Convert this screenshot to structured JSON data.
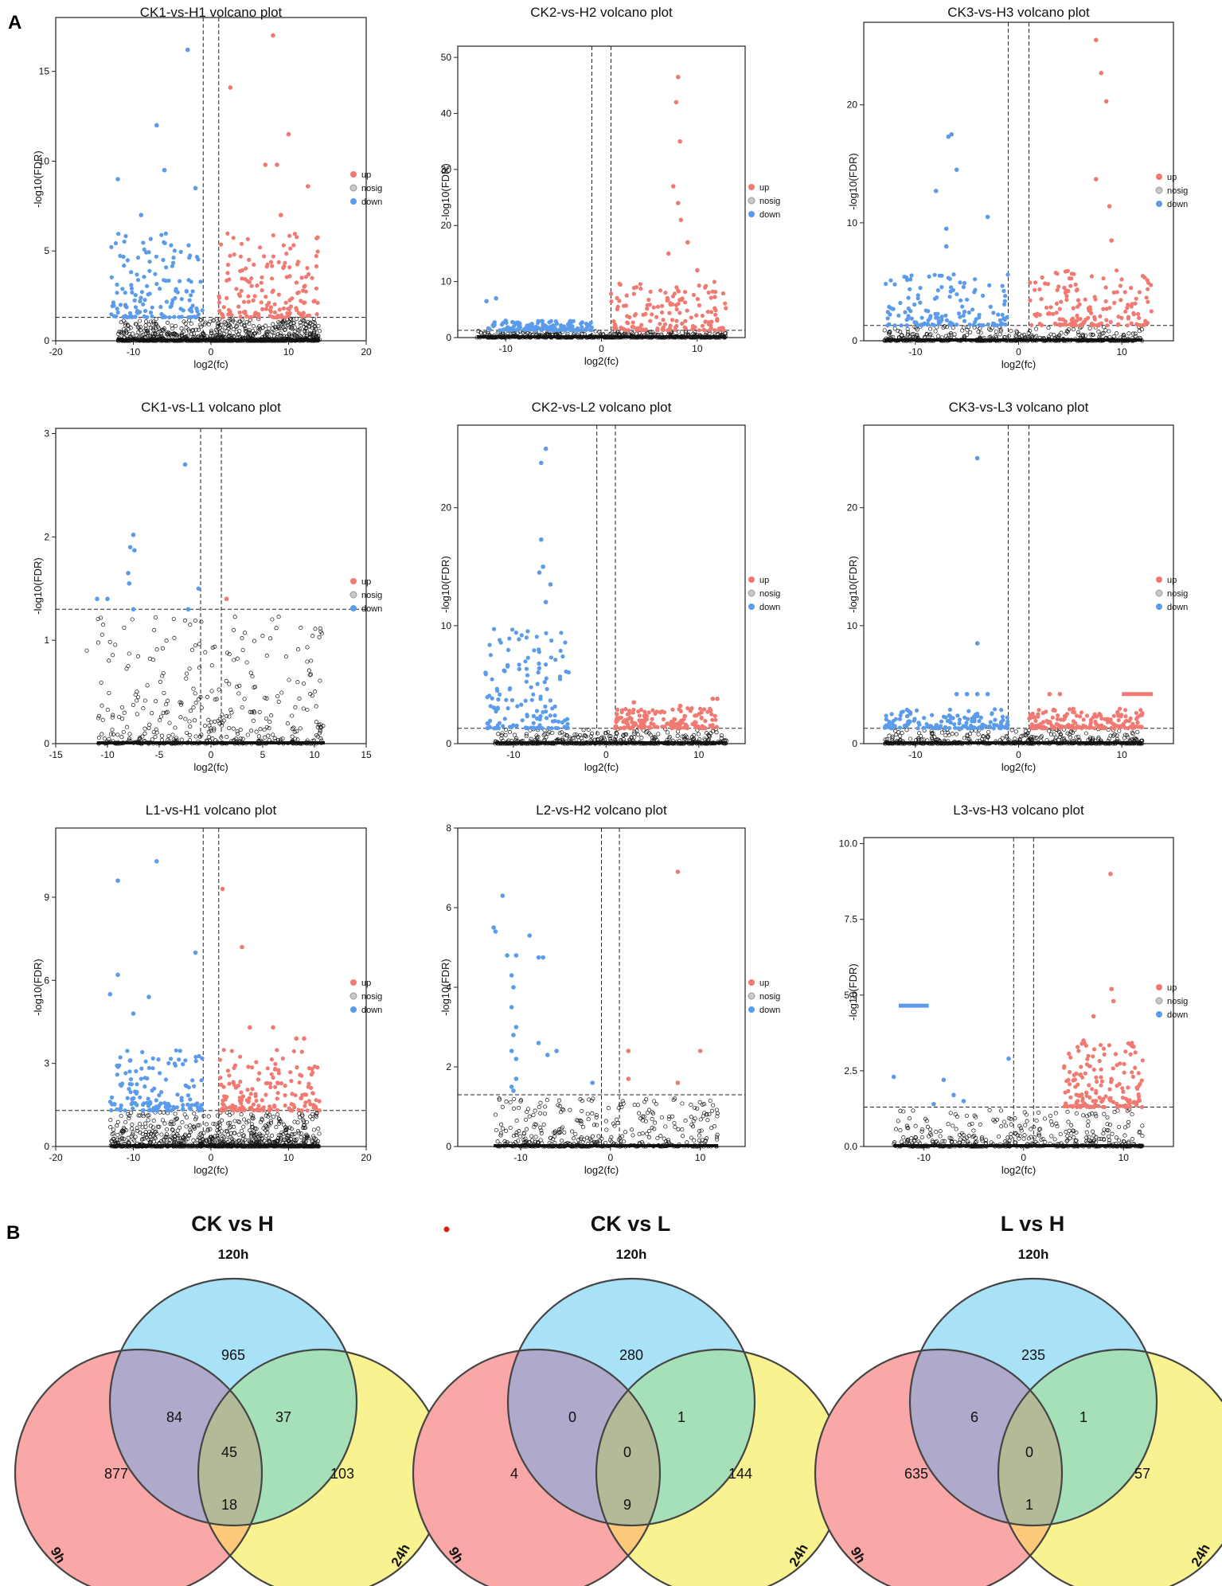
{
  "panel_labels": {
    "a": "A",
    "b": "B"
  },
  "legend": {
    "up": "up",
    "nosig": "nosig",
    "down": "down"
  },
  "colors": {
    "up": "#F07A72",
    "nosig": "#111111",
    "down": "#5B9BEA",
    "c120": "#A9E1F6",
    "c9": "#F9A7A7",
    "c24": "#F8F390",
    "c9x120": "#AFA9CB",
    "c120x24": "#A6E0B8",
    "c9x24": "#FCC97B",
    "c3": "#B2BA98"
  },
  "chart_data": [
    {
      "type": "scatter",
      "title": "CK1-vs-H1 volcano plot",
      "xlabel": "log2(fc)",
      "ylabel": "-log10(FDR)",
      "xlim": [
        -20,
        20
      ],
      "ylim": [
        0,
        18
      ],
      "xticks": [
        -20,
        -10,
        0,
        10,
        20
      ],
      "yticks": [
        0,
        5,
        10,
        15
      ],
      "vlines": [
        -1,
        1
      ],
      "hline": 1.3,
      "clouds": {
        "nosig": [
          [
            -12,
            2
          ],
          [
            2,
            14
          ]
        ],
        "down": [
          [
            -13,
            -1
          ]
        ],
        "up": [
          [
            1,
            14
          ]
        ]
      },
      "up_max": 6,
      "down_max": 6,
      "highlights": {
        "up": [
          [
            8,
            17
          ],
          [
            2.5,
            14.1
          ],
          [
            10,
            11.5
          ],
          [
            7,
            9.8
          ],
          [
            8.5,
            9.8
          ],
          [
            12.5,
            8.6
          ],
          [
            9,
            7
          ]
        ],
        "down": [
          [
            -3,
            16.2
          ],
          [
            -7,
            12
          ],
          [
            -12,
            9
          ],
          [
            -6,
            9.5
          ],
          [
            -2,
            8.5
          ],
          [
            -9,
            7
          ]
        ]
      }
    },
    {
      "type": "scatter",
      "title": "CK2-vs-H2 volcano plot",
      "xlabel": "log2(fc)",
      "ylabel": "-log10(FDR)",
      "xlim": [
        -15,
        15
      ],
      "ylim": [
        0,
        52
      ],
      "xticks": [
        -10,
        0,
        10
      ],
      "yticks": [
        0,
        10,
        20,
        30,
        40,
        50
      ],
      "vlines": [
        -1,
        1
      ],
      "hline": 1.3,
      "clouds": {
        "nosig": [
          [
            -13,
            13
          ]
        ],
        "down": [
          [
            -12,
            -1
          ]
        ],
        "up": [
          [
            1,
            13
          ]
        ]
      },
      "up_max": 10,
      "down_max": 3,
      "highlights": {
        "up": [
          [
            8,
            46.5
          ],
          [
            7.8,
            42
          ],
          [
            8.2,
            35
          ],
          [
            7.5,
            27
          ],
          [
            8,
            24
          ],
          [
            8.3,
            21
          ],
          [
            9,
            17
          ],
          [
            7,
            15
          ],
          [
            10,
            12
          ]
        ],
        "down": [
          [
            -11,
            7
          ],
          [
            -12,
            6.5
          ],
          [
            -10,
            3
          ]
        ]
      }
    },
    {
      "type": "scatter",
      "title": "CK3-vs-H3 volcano plot",
      "xlabel": "log2(fc)",
      "ylabel": "-log10(FDR)",
      "xlim": [
        -15,
        15
      ],
      "ylim": [
        0,
        27
      ],
      "xticks": [
        -10,
        0,
        10
      ],
      "yticks": [
        0,
        10,
        20
      ],
      "vlines": [
        -1,
        1
      ],
      "hline": 1.3,
      "clouds": {
        "nosig": [
          [
            -13,
            12
          ]
        ],
        "down": [
          [
            -13,
            -1
          ]
        ],
        "up": [
          [
            1,
            13
          ]
        ]
      },
      "up_max": 6,
      "down_max": 6,
      "highlights": {
        "up": [
          [
            7.5,
            25.5
          ],
          [
            8,
            22.7
          ],
          [
            8.5,
            20.3
          ],
          [
            7.5,
            13.7
          ],
          [
            8.8,
            11.4
          ],
          [
            9,
            8.5
          ]
        ],
        "down": [
          [
            -6.5,
            17.5
          ],
          [
            -6.8,
            17.3
          ],
          [
            -6,
            14.5
          ],
          [
            -8,
            12.7
          ],
          [
            -3,
            10.5
          ],
          [
            -7,
            9.5
          ],
          [
            -7,
            8
          ]
        ]
      }
    },
    {
      "type": "scatter",
      "title": "CK1-vs-L1 volcano plot",
      "xlabel": "log2(fc)",
      "ylabel": "-log10(FDR)",
      "xlim": [
        -15,
        15
      ],
      "ylim": [
        0,
        3.05
      ],
      "xticks": [
        -15,
        -10,
        -5,
        0,
        5,
        10,
        15
      ],
      "yticks": [
        0,
        1,
        2,
        3
      ],
      "vlines": [
        -1,
        1
      ],
      "hline": 1.3,
      "clouds": {
        "nosig": [
          [
            -11,
            11
          ]
        ]
      },
      "up_max": 0,
      "down_max": 0,
      "highlights": {
        "down": [
          [
            -2.5,
            2.7
          ],
          [
            -7.5,
            2.02
          ],
          [
            -7.8,
            1.9
          ],
          [
            -7.4,
            1.87
          ],
          [
            -8,
            1.65
          ],
          [
            -7.9,
            1.55
          ],
          [
            -11,
            1.4
          ],
          [
            -10,
            1.4
          ],
          [
            -7.5,
            1.3
          ],
          [
            -2.2,
            1.3
          ],
          [
            -1.2,
            1.5
          ]
        ],
        "up": [
          [
            1.5,
            1.4
          ]
        ],
        "nosig": [
          [
            -12,
            0.9
          ],
          [
            -8,
            0.75
          ],
          [
            -1.5,
            0.95
          ],
          [
            3,
            1.02
          ],
          [
            4,
            0.65
          ],
          [
            2.5,
            0.55
          ],
          [
            -3,
            0.4
          ],
          [
            -1,
            0.45
          ],
          [
            2,
            0.3
          ],
          [
            -4,
            0.2
          ],
          [
            -6,
            0.15
          ]
        ]
      }
    },
    {
      "type": "scatter",
      "title": "CK2-vs-L2 volcano plot",
      "xlabel": "log2(fc)",
      "ylabel": "-log10(FDR)",
      "xlim": [
        -16,
        15
      ],
      "ylim": [
        0,
        27
      ],
      "xticks": [
        -10,
        0,
        10
      ],
      "yticks": [
        0,
        10,
        20
      ],
      "vlines": [
        -1,
        1
      ],
      "hline": 1.3,
      "clouds": {
        "nosig": [
          [
            -12,
            13
          ]
        ],
        "down": [
          [
            -13,
            -4
          ]
        ],
        "up": [
          [
            1,
            12
          ]
        ]
      },
      "up_max": 3,
      "down_max": 10,
      "highlights": {
        "down": [
          [
            -6.5,
            25
          ],
          [
            -7,
            23.8
          ],
          [
            -7,
            17.3
          ],
          [
            -6.8,
            15
          ],
          [
            -7.2,
            14.5
          ],
          [
            -6,
            13.5
          ],
          [
            -6.5,
            12
          ],
          [
            -13,
            6
          ],
          [
            -11,
            6.2
          ]
        ],
        "up": [
          [
            11.5,
            3.8
          ],
          [
            12,
            3.8
          ],
          [
            3,
            3.5
          ],
          [
            8,
            3.2
          ]
        ]
      }
    },
    {
      "type": "scatter",
      "title": "CK3-vs-L3 volcano plot",
      "xlabel": "log2(fc)",
      "ylabel": "-log10(FDR)",
      "xlim": [
        -15,
        15
      ],
      "ylim": [
        0,
        27
      ],
      "xticks": [
        -10,
        0,
        10
      ],
      "yticks": [
        0,
        10,
        20
      ],
      "vlines": [
        -1,
        1
      ],
      "hline": 1.3,
      "clouds": {
        "nosig": [
          [
            -13,
            12
          ]
        ],
        "down": [
          [
            -13,
            -1
          ]
        ],
        "up": [
          [
            1,
            12
          ]
        ]
      },
      "up_max": 3,
      "down_max": 3,
      "highlights": {
        "down": [
          [
            -4,
            24.2
          ],
          [
            -4,
            8.5
          ],
          [
            -3,
            4.2
          ],
          [
            -4,
            4.2
          ],
          [
            -5,
            4.2
          ],
          [
            -6,
            4.2
          ]
        ],
        "up": [
          [
            3,
            4.2
          ],
          [
            4,
            4.2
          ]
        ],
        "upbar": [
          10,
          13,
          4.2
        ]
      }
    },
    {
      "type": "scatter",
      "title": "L1-vs-H1 volcano plot",
      "xlabel": "log2(fc)",
      "ylabel": "-log10(FDR)",
      "xlim": [
        -20,
        20
      ],
      "ylim": [
        0,
        11.5
      ],
      "xticks": [
        -20,
        -10,
        0,
        10,
        20
      ],
      "yticks": [
        0,
        3,
        6,
        9
      ],
      "vlines": [
        -1,
        1
      ],
      "hline": 1.3,
      "clouds": {
        "nosig": [
          [
            -13,
            2
          ],
          [
            2,
            14
          ]
        ],
        "down": [
          [
            -13,
            -1
          ]
        ],
        "up": [
          [
            1,
            14
          ]
        ]
      },
      "up_max": 3.5,
      "down_max": 3.5,
      "highlights": {
        "down": [
          [
            -7,
            10.3
          ],
          [
            -12,
            9.6
          ],
          [
            -2,
            7
          ],
          [
            -12,
            6.2
          ],
          [
            -13,
            5.5
          ],
          [
            -8,
            5.4
          ],
          [
            -10,
            4.8
          ]
        ],
        "up": [
          [
            1.5,
            9.3
          ],
          [
            4,
            7.2
          ],
          [
            5,
            4.3
          ],
          [
            8,
            4.3
          ],
          [
            11,
            3.9
          ],
          [
            12,
            3.9
          ]
        ]
      }
    },
    {
      "type": "scatter",
      "title": "L2-vs-H2 volcano plot",
      "xlabel": "log2(fc)",
      "ylabel": "-log10(FDR)",
      "xlim": [
        -17,
        15
      ],
      "ylim": [
        0,
        8
      ],
      "xticks": [
        -10,
        0,
        10
      ],
      "yticks": [
        0,
        2,
        4,
        6,
        8
      ],
      "vlines": [
        -1,
        1
      ],
      "hline": 1.3,
      "clouds": {
        "nosig": [
          [
            -13,
            12
          ]
        ]
      },
      "up_max": 0,
      "down_max": 0,
      "highlights": {
        "down": [
          [
            -12,
            6.3
          ],
          [
            -13,
            5.5
          ],
          [
            -12.8,
            5.4
          ],
          [
            -9,
            5.3
          ],
          [
            -11.5,
            4.8
          ],
          [
            -10.5,
            4.8
          ],
          [
            -8,
            4.75
          ],
          [
            -7.5,
            4.75
          ],
          [
            -11,
            4.3
          ],
          [
            -10.8,
            4
          ],
          [
            -11,
            3.5
          ],
          [
            -10.5,
            3
          ],
          [
            -10.8,
            2.8
          ],
          [
            -11,
            2.4
          ],
          [
            -10.5,
            2.2
          ],
          [
            -8,
            2.6
          ],
          [
            -7,
            2.3
          ],
          [
            -6,
            2.4
          ],
          [
            -10.5,
            1.7
          ],
          [
            -11,
            1.5
          ],
          [
            -10.8,
            1.4
          ],
          [
            -2,
            1.6
          ]
        ],
        "up": [
          [
            7.5,
            6.9
          ],
          [
            10,
            2.4
          ],
          [
            2,
            2.4
          ],
          [
            2,
            1.7
          ],
          [
            7.5,
            1.6
          ]
        ]
      }
    },
    {
      "type": "scatter",
      "title": "L3-vs-H3 volcano plot",
      "xlabel": "log2(fc)",
      "ylabel": "-log10(FDR)",
      "xlim": [
        -16,
        15
      ],
      "ylim": [
        0,
        10.2
      ],
      "xticks": [
        -10,
        0,
        10
      ],
      "yticks": [
        0,
        2.5,
        5,
        7.5,
        10
      ],
      "yticklabels": [
        "0.0",
        "2.5",
        "5.0",
        "7.5",
        "10.0"
      ],
      "vlines": [
        -1,
        1
      ],
      "hline": 1.3,
      "clouds": {
        "nosig": [
          [
            -13,
            12
          ]
        ],
        "up": [
          [
            4,
            12
          ]
        ]
      },
      "up_max": 3.5,
      "down_max": 0,
      "highlights": {
        "downbar": [
          -12.5,
          -9.5,
          4.65
        ],
        "down": [
          [
            -13,
            2.3
          ],
          [
            -1.5,
            2.9
          ],
          [
            -8,
            2.2
          ],
          [
            -6,
            1.5
          ],
          [
            -7,
            1.7
          ],
          [
            -9,
            1.4
          ]
        ],
        "up": [
          [
            8.7,
            9
          ],
          [
            8.8,
            5.2
          ],
          [
            9,
            4.8
          ],
          [
            7,
            4.3
          ],
          [
            11,
            3.3
          ],
          [
            6,
            3.5
          ]
        ]
      }
    },
    {
      "type": "venn",
      "title": "CK vs H",
      "sets": [
        "9h",
        "120h",
        "24h"
      ],
      "regions": {
        "only120": 965,
        "only9": 877,
        "only24": 103,
        "s9_120": 84,
        "s120_24": 37,
        "s9_24": 18,
        "all": 45
      }
    },
    {
      "type": "venn",
      "title": "CK vs L",
      "sets": [
        "9h",
        "120h",
        "24h"
      ],
      "regions": {
        "only120": 280,
        "only9": 4,
        "only24": 144,
        "s9_120": 0,
        "s120_24": 1,
        "s9_24": 9,
        "all": 0
      }
    },
    {
      "type": "venn",
      "title": "L vs H",
      "sets": [
        "9h",
        "120h",
        "24h"
      ],
      "regions": {
        "only120": 235,
        "only9": 635,
        "only24": 57,
        "s9_120": 6,
        "s120_24": 1,
        "s9_24": 1,
        "all": 0
      }
    }
  ]
}
